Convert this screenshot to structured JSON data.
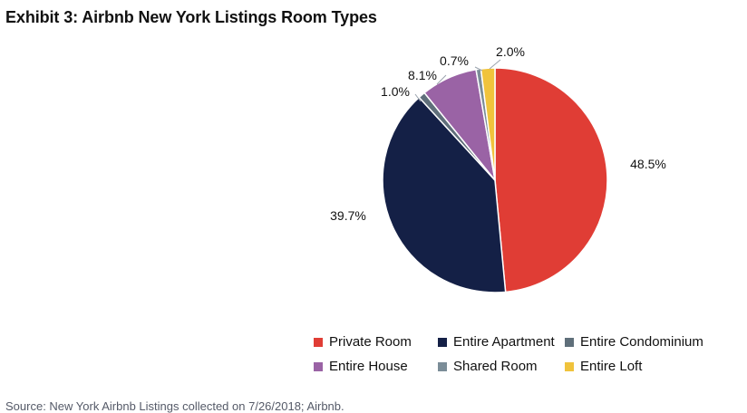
{
  "title": "Exhibit 3: Airbnb New York Listings Room Types",
  "source": "Source: New York Airbnb Listings collected on 7/26/2018; Airbnb.",
  "chart_data": {
    "type": "pie",
    "title": "Exhibit 3: Airbnb New York Listings Room Types",
    "legend_position": "bottom",
    "slices": [
      {
        "name": "Private Room",
        "value": 48.5,
        "label": "48.5%",
        "color": "#e03d35"
      },
      {
        "name": "Entire Apartment",
        "value": 39.7,
        "label": "39.7%",
        "color": "#142046"
      },
      {
        "name": "Entire Condominium",
        "value": 1.0,
        "label": "1.0%",
        "color": "#5f6f7a"
      },
      {
        "name": "Entire House",
        "value": 8.1,
        "label": "8.1%",
        "color": "#9a63a5"
      },
      {
        "name": "Shared Room",
        "value": 0.7,
        "label": "0.7%",
        "color": "#7b8d98"
      },
      {
        "name": "Entire Loft",
        "value": 2.0,
        "label": "2.0%",
        "color": "#f0c33c"
      }
    ]
  },
  "legend": {
    "rows": [
      [
        {
          "label": "Private Room",
          "color": "#e03d35"
        },
        {
          "label": "Entire Apartment",
          "color": "#142046"
        },
        {
          "label": "Entire Condominium",
          "color": "#5f6f7a"
        }
      ],
      [
        {
          "label": "Entire House",
          "color": "#9a63a5"
        },
        {
          "label": "Shared Room",
          "color": "#7b8d98"
        },
        {
          "label": "Entire Loft",
          "color": "#f0c33c"
        }
      ]
    ]
  }
}
